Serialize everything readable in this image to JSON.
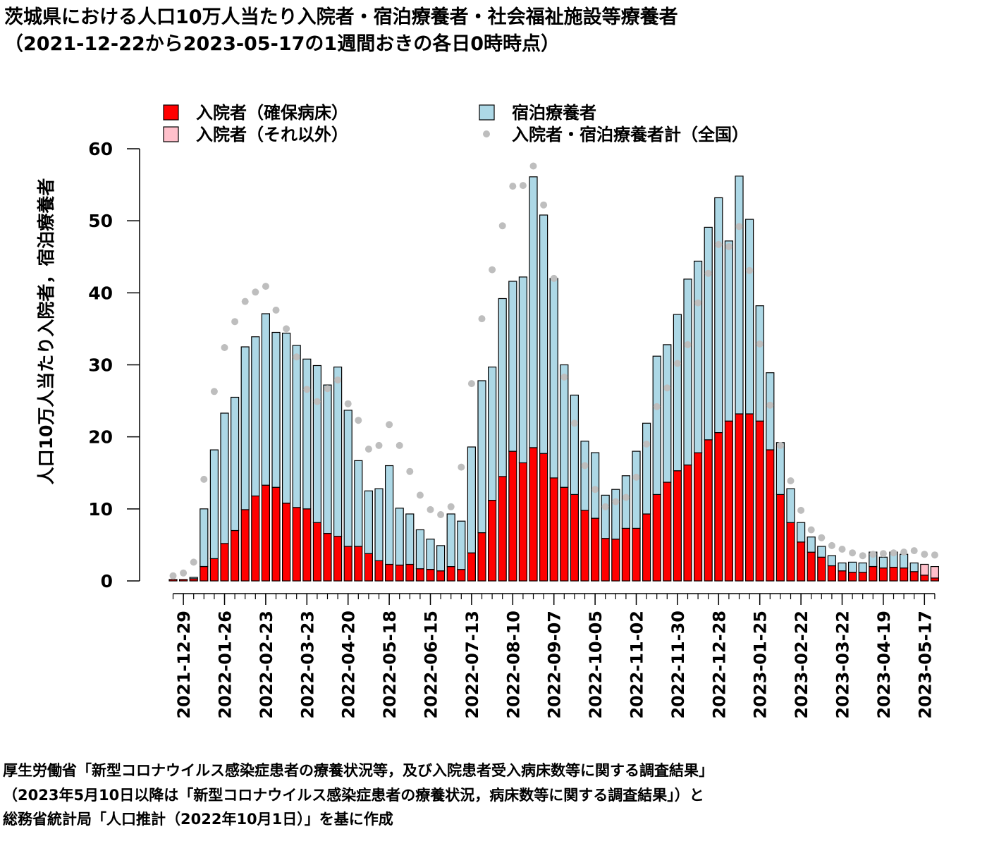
{
  "chart_data": {
    "type": "bar",
    "title": "茨城県における人口10万人当たり入院者・宿泊療養者・社会福祉施設等療養者",
    "subtitle": "（2021-12-22から2023-05-17の1週間おきの各日0時時点）",
    "ylabel": "人口10万人当たり入院者，宿泊療養者",
    "ylim": [
      0,
      60
    ],
    "yticks": [
      0,
      10,
      20,
      30,
      40,
      50,
      60
    ],
    "x_start": "2021-12-22",
    "x_end": "2023-05-17",
    "x_step": "1 week",
    "xtick_labels": [
      "2021-12-29",
      "2022-01-26",
      "2022-02-23",
      "2022-03-23",
      "2022-04-20",
      "2022-05-18",
      "2022-06-15",
      "2022-07-13",
      "2022-08-10",
      "2022-09-07",
      "2022-10-05",
      "2022-11-02",
      "2022-11-30",
      "2022-12-28",
      "2023-01-25",
      "2023-02-22",
      "2023-03-22",
      "2023-04-19",
      "2023-05-17"
    ],
    "legend_position": "top",
    "stacked": true,
    "series": [
      {
        "name": "入院者（確保病床）",
        "color": "#ff0000",
        "kind": "bar",
        "values": [
          0.2,
          0.2,
          0.3,
          2.0,
          3.1,
          5.2,
          7.0,
          9.9,
          11.8,
          13.3,
          13.0,
          10.8,
          10.2,
          10.0,
          8.1,
          6.6,
          6.2,
          4.8,
          4.8,
          3.8,
          2.8,
          2.3,
          2.2,
          2.3,
          1.7,
          1.6,
          1.4,
          2.0,
          1.6,
          3.9,
          6.7,
          11.2,
          14.5,
          18.0,
          16.4,
          18.5,
          17.7,
          14.3,
          13.0,
          12.0,
          9.8,
          8.7,
          5.9,
          5.8,
          7.3,
          7.3,
          9.3,
          12.0,
          13.7,
          15.3,
          16.1,
          17.8,
          19.6,
          20.6,
          22.2,
          23.2,
          23.2,
          22.2,
          18.2,
          12.0,
          8.1,
          5.4,
          4.0,
          3.3,
          2.1,
          1.4,
          1.2,
          1.2,
          2.0,
          1.8,
          1.9,
          1.8,
          1.3,
          0.8,
          0.4
        ]
      },
      {
        "name": "入院者（それ以外）",
        "color": "#ffc0cb",
        "kind": "bar",
        "values": [
          0,
          0,
          0,
          0,
          0,
          0,
          0,
          0,
          0,
          0,
          0,
          0,
          0,
          0,
          0,
          0,
          0,
          0,
          0,
          0,
          0,
          0,
          0,
          0,
          0,
          0,
          0,
          0,
          0,
          0,
          0,
          0,
          0,
          0,
          0,
          0,
          0,
          0,
          0,
          0,
          0,
          0,
          0,
          0,
          0,
          0,
          0,
          0,
          0,
          0,
          0,
          0,
          0,
          0,
          0,
          0,
          0,
          0,
          0,
          0,
          0,
          0,
          0,
          0,
          0,
          0,
          0,
          0,
          0,
          0,
          0,
          0,
          0,
          1.5,
          1.6
        ]
      },
      {
        "name": "宿泊療養者",
        "color": "#add8e6",
        "kind": "bar",
        "values": [
          0,
          0,
          0.2,
          8.0,
          15.1,
          18.1,
          18.5,
          22.6,
          22.1,
          23.8,
          21.5,
          23.6,
          22.5,
          20.8,
          21.8,
          20.6,
          23.5,
          18.9,
          11.9,
          8.7,
          10.0,
          13.7,
          7.9,
          7.0,
          5.4,
          4.2,
          3.5,
          7.3,
          6.7,
          14.7,
          21.1,
          18.5,
          24.7,
          23.6,
          25.8,
          37.6,
          33.1,
          27.7,
          17.0,
          13.8,
          9.6,
          9.1,
          6.0,
          6.9,
          7.3,
          10.7,
          12.6,
          19.2,
          19.1,
          21.7,
          25.8,
          26.6,
          29.5,
          32.6,
          25.0,
          33.0,
          27.0,
          16.0,
          10.7,
          7.2,
          4.7,
          2.7,
          2.1,
          1.5,
          1.4,
          1.1,
          1.4,
          1.3,
          2.0,
          1.5,
          2.1,
          1.9,
          1.2,
          0,
          0
        ]
      },
      {
        "name": "入院者・宿泊療養者計（全国）",
        "color": "#bebebe",
        "kind": "point",
        "values": [
          0.7,
          1.1,
          2.6,
          14.1,
          26.3,
          32.4,
          36.0,
          38.8,
          40.1,
          40.9,
          37.6,
          35.0,
          31.1,
          26.6,
          24.9,
          26.7,
          27.9,
          24.6,
          22.3,
          18.3,
          18.8,
          21.7,
          18.8,
          15.2,
          11.9,
          9.9,
          9.2,
          10.3,
          15.8,
          27.4,
          36.4,
          43.2,
          49.3,
          54.8,
          54.9,
          57.6,
          52.2,
          42.0,
          28.3,
          21.9,
          16.0,
          12.7,
          10.3,
          11.0,
          11.6,
          14.4,
          19.0,
          24.2,
          26.8,
          30.2,
          32.8,
          38.6,
          42.7,
          46.7,
          46.4,
          49.2,
          43.1,
          32.9,
          24.4,
          18.8,
          13.9,
          9.8,
          7.1,
          6.0,
          4.9,
          4.4,
          3.9,
          3.5,
          3.7,
          3.8,
          3.9,
          4.0,
          4.2,
          3.7,
          3.6
        ]
      }
    ]
  },
  "source_lines": [
    "厚生労働省「新型コロナウイルス感染症患者の療養状況等，及び入院患者受入病床数等に関する調査結果」",
    "（2023年5月10日以降は「新型コロナウイルス感染症患者の療養状況，病床数等に関する調査結果」）と",
    "総務省統計局「人口推計（2022年10月1日）」を基に作成"
  ]
}
